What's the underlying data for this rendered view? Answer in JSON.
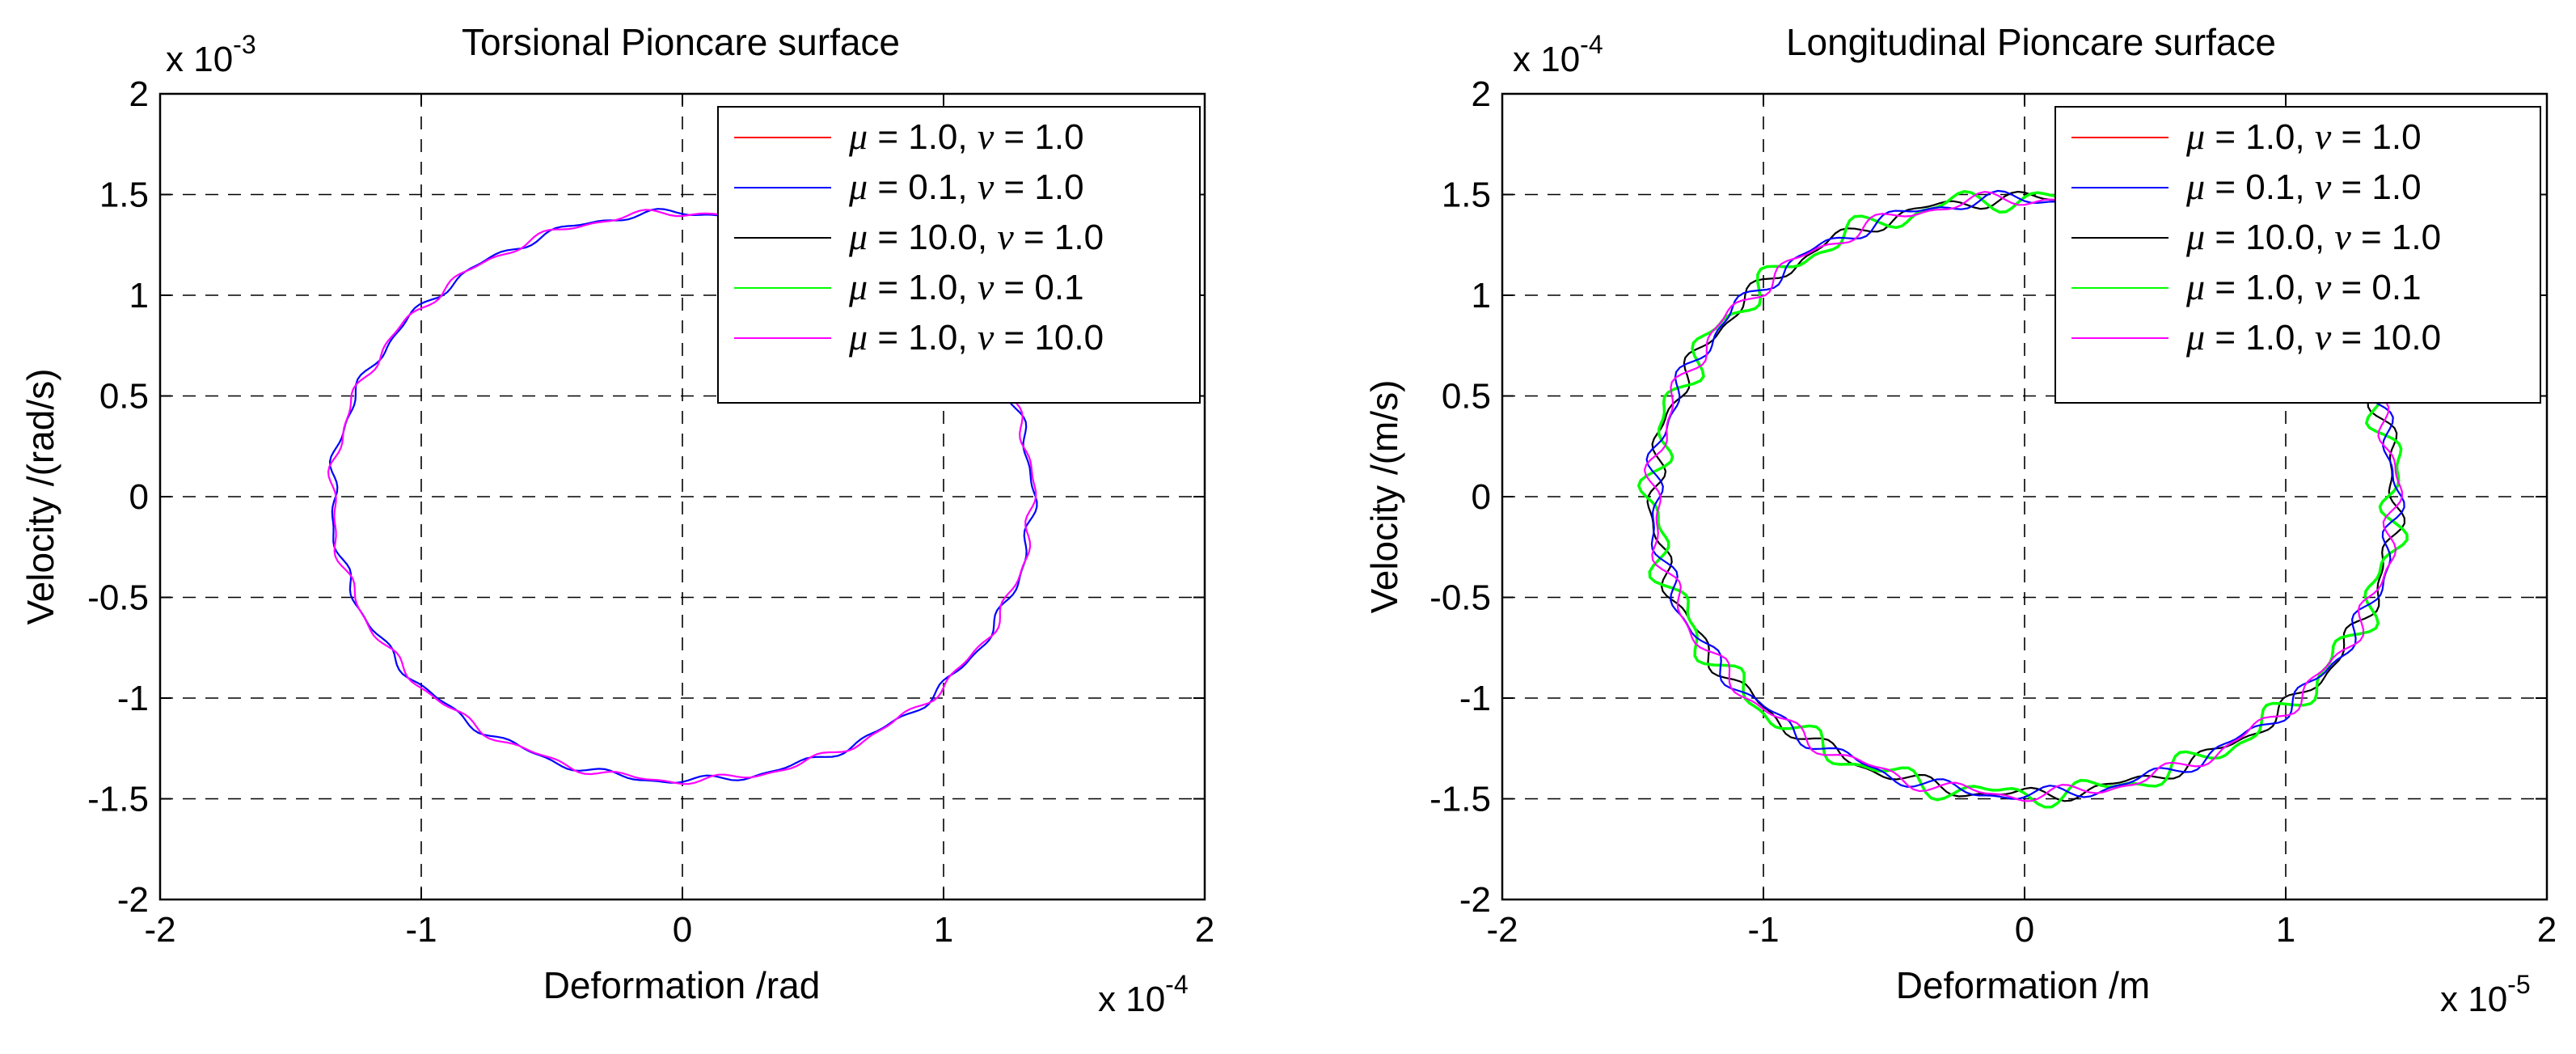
{
  "chart_data": [
    {
      "type": "line",
      "title": "Torsional Pioncare surface",
      "xlabel": "Deformation /rad",
      "ylabel": "Velocity /(rad/s)",
      "xlim": [
        -2,
        2
      ],
      "ylim": [
        -2,
        2
      ],
      "x_multiplier": {
        "base": "x 10",
        "exp": "-4"
      },
      "y_multiplier": {
        "base": "x 10",
        "exp": "-3"
      },
      "xticks": [
        "-2",
        "-1",
        "0",
        "1",
        "2"
      ],
      "yticks": [
        "-2",
        "-1.5",
        "-1",
        "-0.5",
        "0",
        "0.5",
        "1",
        "1.5",
        "2"
      ],
      "grid": true,
      "legend_position": "top-right",
      "curve": {
        "x_amplitude": 1.34,
        "y_amplitude": 1.41
      },
      "series": [
        {
          "mu": "1.0",
          "nu": "1.0",
          "color": "#ff0000",
          "visible": false
        },
        {
          "mu": "0.1",
          "nu": "1.0",
          "color": "#0000ff",
          "visible": true
        },
        {
          "mu": "10.0",
          "nu": "1.0",
          "color": "#000000",
          "visible": false
        },
        {
          "mu": "1.0",
          "nu": "0.1",
          "color": "#00ff00",
          "visible": false
        },
        {
          "mu": "1.0",
          "nu": "10.0",
          "color": "#ff00ff",
          "visible": true
        }
      ]
    },
    {
      "type": "line",
      "title": "Longitudinal Pioncare surface",
      "xlabel": "Deformation /m",
      "ylabel": "Velocity /(m/s)",
      "xlim": [
        -2,
        2
      ],
      "ylim": [
        -2,
        2
      ],
      "x_multiplier": {
        "base": "x 10",
        "exp": "-5"
      },
      "y_multiplier": {
        "base": "x 10",
        "exp": "-4"
      },
      "xticks": [
        "-2",
        "-1",
        "0",
        "1",
        "2"
      ],
      "yticks": [
        "-2",
        "-1.5",
        "-1",
        "-0.5",
        "0",
        "0.5",
        "1",
        "1.5",
        "2"
      ],
      "grid": true,
      "legend_position": "top-right",
      "curve": {
        "x_amplitude": 1.42,
        "y_amplitude": 1.48
      },
      "series": [
        {
          "mu": "1.0",
          "nu": "1.0",
          "color": "#ff0000",
          "visible": false
        },
        {
          "mu": "0.1",
          "nu": "1.0",
          "color": "#0000ff",
          "visible": true
        },
        {
          "mu": "10.0",
          "nu": "1.0",
          "color": "#000000",
          "visible": true
        },
        {
          "mu": "1.0",
          "nu": "0.1",
          "color": "#00ff00",
          "visible": true
        },
        {
          "mu": "1.0",
          "nu": "10.0",
          "color": "#ff00ff",
          "visible": true
        }
      ]
    }
  ],
  "legend_text": {
    "mu_symbol": "μ",
    "nu_symbol": "ν",
    "equals": " = ",
    "separator": ",  "
  }
}
